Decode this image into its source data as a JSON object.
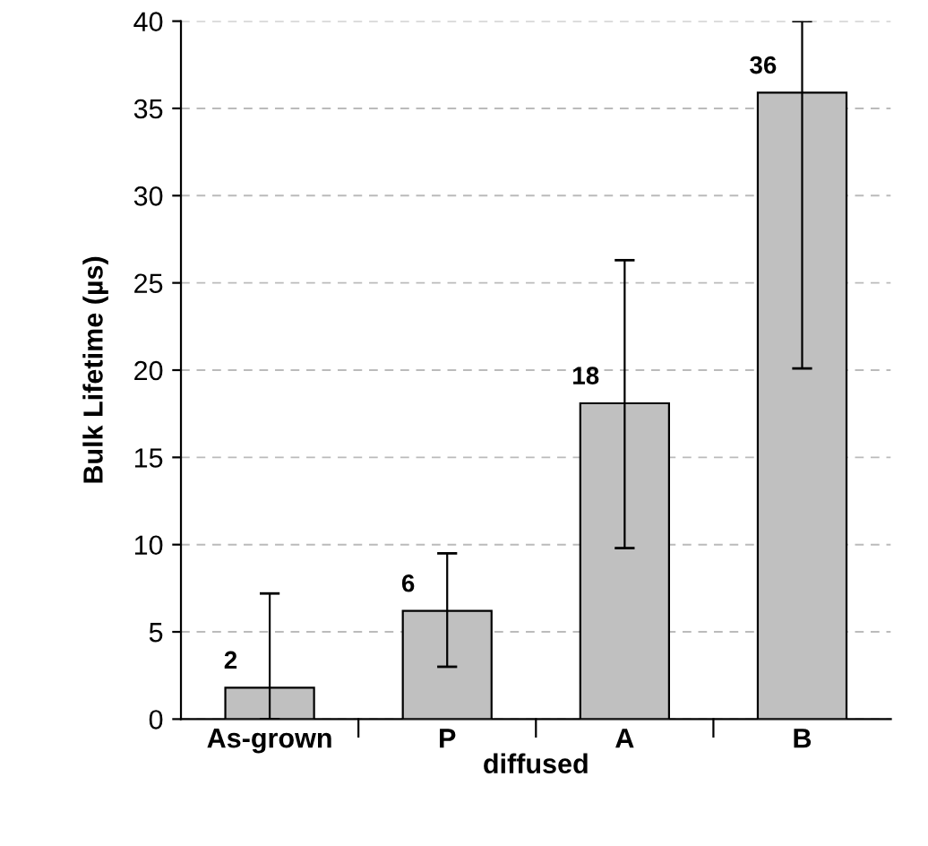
{
  "chart_data": {
    "type": "bar",
    "xlabel": "diffused",
    "ylabel": "Bulk Lifetime (µs)",
    "categories": [
      "As-grown",
      "P",
      "A",
      "B"
    ],
    "values": [
      1.8,
      6.2,
      18.1,
      35.9
    ],
    "value_labels": [
      "2",
      "6",
      "18",
      "36"
    ],
    "errors": [
      [
        0,
        7.2
      ],
      [
        3,
        9.5
      ],
      [
        9.8,
        26.3
      ],
      [
        20.1,
        40
      ]
    ],
    "color": "#c0c0c0",
    "ylim": [
      0,
      40
    ],
    "yticks": [
      0,
      5,
      10,
      15,
      20,
      25,
      30,
      35,
      40
    ],
    "grid": "y"
  }
}
